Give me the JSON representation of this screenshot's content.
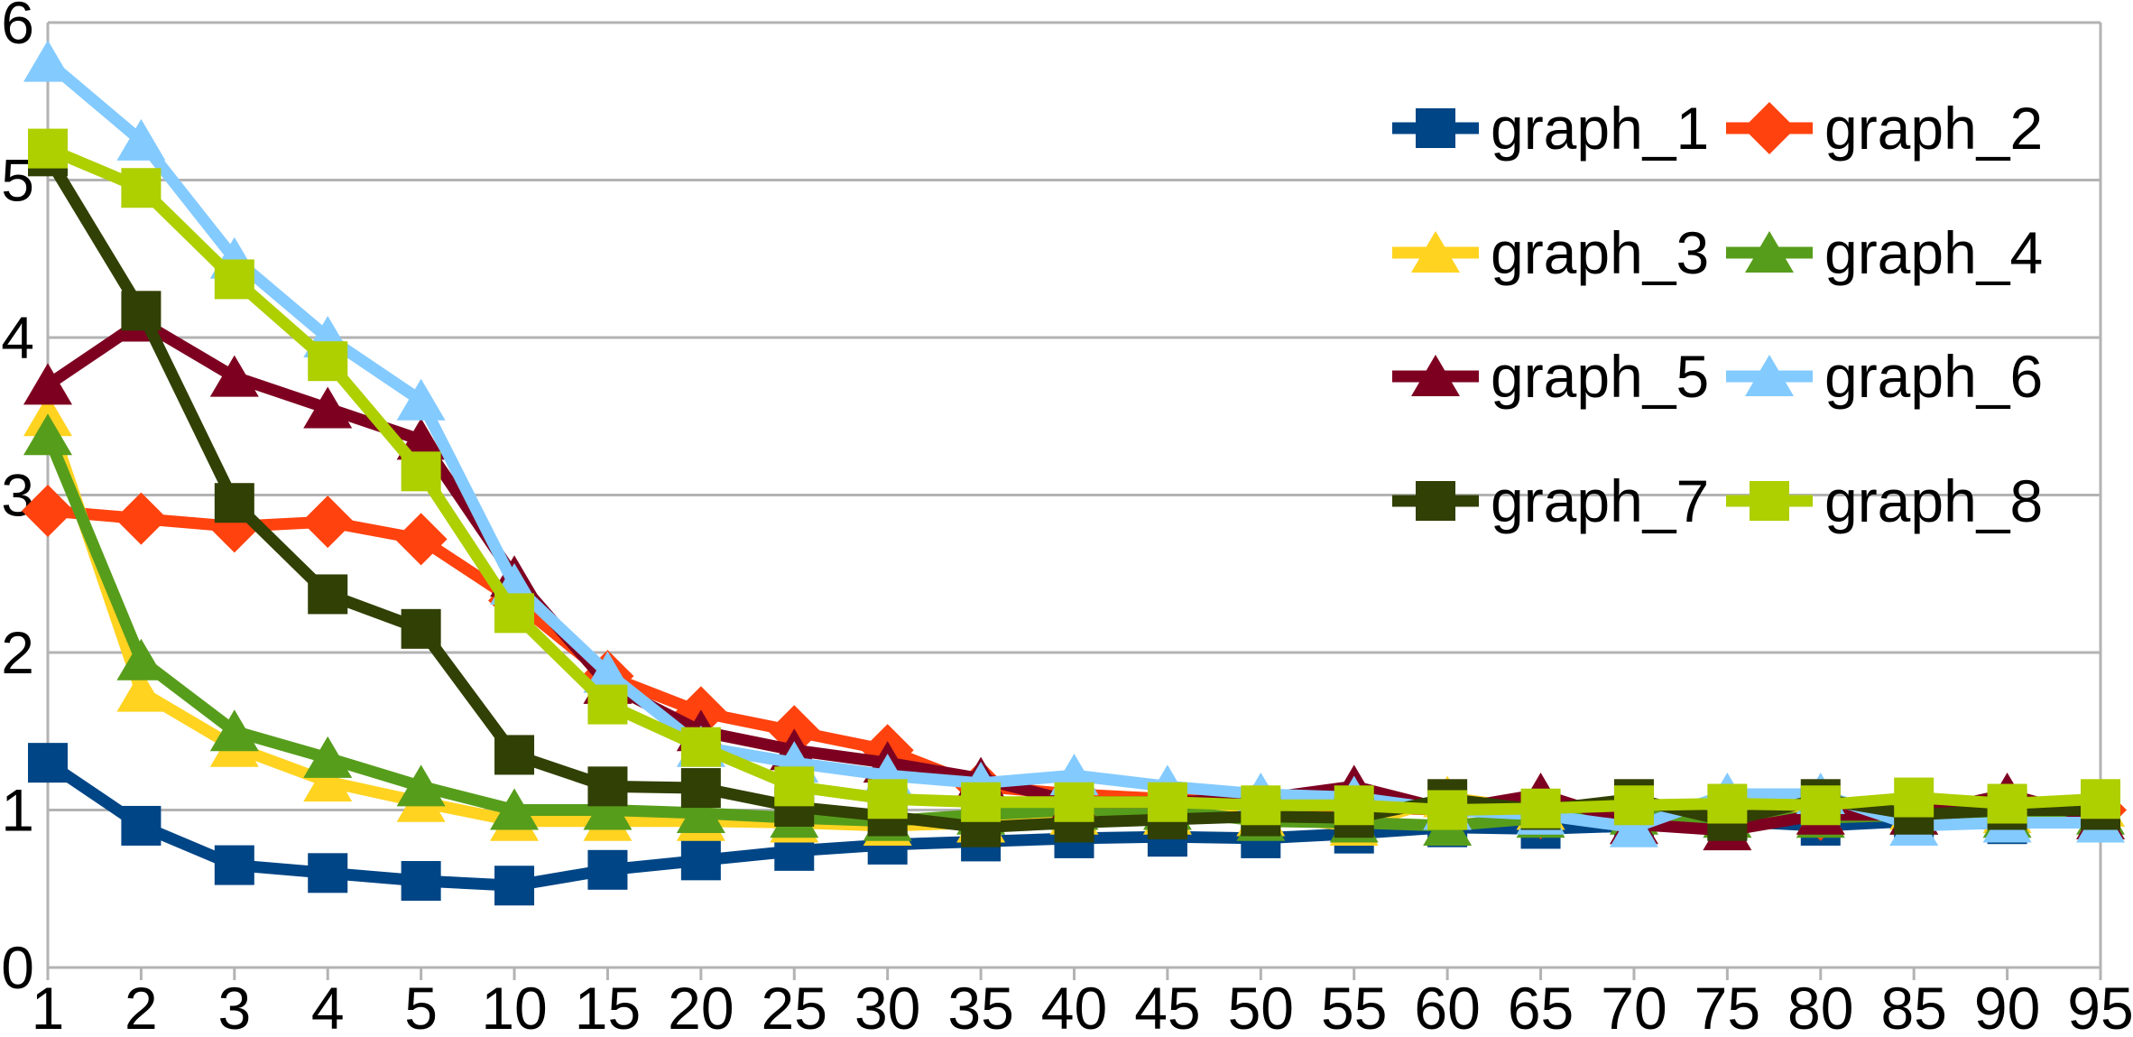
{
  "chart_data": {
    "type": "line",
    "title": "",
    "xlabel": "",
    "ylabel": "",
    "categories": [
      "1",
      "2",
      "3",
      "4",
      "5",
      "10",
      "15",
      "20",
      "25",
      "30",
      "35",
      "40",
      "45",
      "50",
      "55",
      "60",
      "65",
      "70",
      "75",
      "80",
      "85",
      "90",
      "95"
    ],
    "yticks": [
      "0",
      "1",
      "2",
      "3",
      "4",
      "5",
      "6"
    ],
    "ylim": [
      0,
      6
    ],
    "grid": "horizontal-gridlines-plus-left-right-frame",
    "gridline_color": "#b3b3b3",
    "background_color": "#ffffff",
    "legend_position": "top-right-inside-transparent",
    "legend_columns": 2,
    "series": [
      {
        "name": "graph_1",
        "color": "#004586",
        "marker": "square",
        "values": [
          1.3,
          0.9,
          0.65,
          0.6,
          0.55,
          0.52,
          0.62,
          0.68,
          0.74,
          0.78,
          0.8,
          0.82,
          0.83,
          0.82,
          0.85,
          0.89,
          0.88,
          0.9,
          0.93,
          0.9,
          0.93,
          0.91,
          0.95
        ]
      },
      {
        "name": "graph_2",
        "color": "#ff420e",
        "marker": "diamond",
        "values": [
          2.9,
          2.85,
          2.8,
          2.83,
          2.72,
          2.33,
          1.85,
          1.62,
          1.5,
          1.38,
          1.15,
          1.1,
          1.07,
          1.04,
          1.02,
          1.0,
          0.98,
          1.0,
          0.97,
          0.97,
          0.98,
          1.0,
          1.0
        ]
      },
      {
        "name": "graph_3",
        "color": "#ffd320",
        "marker": "triangle",
        "values": [
          3.5,
          1.75,
          1.4,
          1.18,
          1.05,
          0.93,
          0.93,
          0.93,
          0.92,
          0.9,
          0.92,
          0.97,
          0.97,
          0.96,
          0.9,
          1.08,
          1.0,
          1.02,
          1.0,
          0.97,
          1.0,
          0.98,
          1.02
        ]
      },
      {
        "name": "graph_4",
        "color": "#579d1c",
        "marker": "triangle",
        "values": [
          3.38,
          1.95,
          1.5,
          1.33,
          1.15,
          1.0,
          1.0,
          0.98,
          0.95,
          0.93,
          0.97,
          1.0,
          1.0,
          0.93,
          0.92,
          0.9,
          0.95,
          0.97,
          0.95,
          0.95,
          0.97,
          0.95,
          0.97
        ]
      },
      {
        "name": "graph_5",
        "color": "#7e0021",
        "marker": "triangle",
        "values": [
          3.7,
          4.1,
          3.75,
          3.55,
          3.35,
          2.48,
          1.8,
          1.5,
          1.38,
          1.3,
          1.2,
          1.05,
          1.05,
          1.07,
          1.15,
          1.0,
          1.1,
          0.91,
          0.87,
          0.97,
          0.97,
          1.1,
          0.94
        ]
      },
      {
        "name": "graph_6",
        "color": "#83caff",
        "marker": "triangle",
        "values": [
          5.75,
          5.25,
          4.5,
          4.0,
          3.6,
          2.43,
          1.87,
          1.4,
          1.3,
          1.22,
          1.17,
          1.22,
          1.15,
          1.1,
          1.08,
          1.0,
          0.97,
          0.89,
          1.1,
          1.1,
          0.9,
          0.92,
          0.92
        ]
      },
      {
        "name": "graph_7",
        "color": "#314004",
        "marker": "square",
        "values": [
          5.15,
          4.17,
          2.95,
          2.37,
          2.15,
          1.35,
          1.15,
          1.14,
          1.02,
          0.96,
          0.89,
          0.92,
          0.94,
          0.96,
          0.95,
          1.07,
          1.0,
          1.07,
          0.93,
          1.07,
          0.97,
          1.0,
          1.0
        ]
      },
      {
        "name": "graph_8",
        "color": "#aecf00",
        "marker": "square",
        "values": [
          5.2,
          4.95,
          4.37,
          3.85,
          3.15,
          2.25,
          1.67,
          1.4,
          1.15,
          1.07,
          1.05,
          1.05,
          1.05,
          1.03,
          1.03,
          1.0,
          1.01,
          1.03,
          1.04,
          1.03,
          1.08,
          1.04,
          1.07
        ]
      }
    ]
  }
}
